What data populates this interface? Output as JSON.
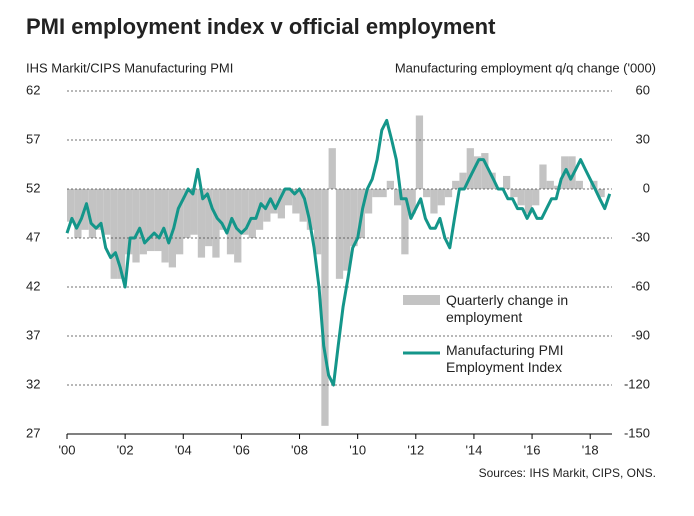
{
  "chart_data": {
    "type": "bar-line",
    "title": "PMI employment index v official employment",
    "y_label": "IHS Markit/CIPS Manufacturing PMI",
    "y2_label": "Manufacturing employment  q/q change ('000)",
    "source": "Sources: IHS Markit, CIPS, ONS.",
    "xlim": [
      2000,
      2018.75
    ],
    "xticks": [
      {
        "value": 2000,
        "label": "'00"
      },
      {
        "value": 2002,
        "label": "'02"
      },
      {
        "value": 2004,
        "label": "'04"
      },
      {
        "value": 2006,
        "label": "'06"
      },
      {
        "value": 2008,
        "label": "'08"
      },
      {
        "value": 2010,
        "label": "'10"
      },
      {
        "value": 2012,
        "label": "'12"
      },
      {
        "value": 2014,
        "label": "'14"
      },
      {
        "value": 2016,
        "label": "'16"
      },
      {
        "value": 2018,
        "label": "'18"
      }
    ],
    "ylim": [
      27,
      62
    ],
    "yticks": [
      27,
      32,
      37,
      42,
      47,
      52,
      57,
      62
    ],
    "y2lim": [
      -150,
      60
    ],
    "y2ticks": [
      -150,
      -120,
      -90,
      -60,
      -30,
      0,
      30,
      60
    ],
    "grid": true,
    "series": [
      {
        "name": "Quarterly change in employment",
        "type": "bar",
        "axis": "y2",
        "color": "#c3c3c3",
        "x": [
          2000,
          2000.25,
          2000.5,
          2000.75,
          2001,
          2001.25,
          2001.5,
          2001.75,
          2002,
          2002.25,
          2002.5,
          2002.75,
          2003,
          2003.25,
          2003.5,
          2003.75,
          2004,
          2004.25,
          2004.5,
          2004.75,
          2005,
          2005.25,
          2005.5,
          2005.75,
          2006,
          2006.25,
          2006.5,
          2006.75,
          2007,
          2007.25,
          2007.5,
          2007.75,
          2008,
          2008.25,
          2008.5,
          2008.75,
          2009,
          2009.25,
          2009.5,
          2009.75,
          2010,
          2010.25,
          2010.5,
          2010.75,
          2011,
          2011.25,
          2011.5,
          2011.75,
          2012,
          2012.25,
          2012.5,
          2012.75,
          2013,
          2013.25,
          2013.5,
          2013.75,
          2014,
          2014.25,
          2014.5,
          2014.75,
          2015,
          2015.25,
          2015.5,
          2015.75,
          2016,
          2016.25,
          2016.5,
          2016.75,
          2017,
          2017.25,
          2017.5,
          2017.75,
          2018,
          2018.25
        ],
        "values": [
          -20,
          -30,
          -25,
          -30,
          -25,
          -28,
          -55,
          -55,
          -40,
          -45,
          -40,
          -38,
          -38,
          -45,
          -48,
          -40,
          -30,
          -28,
          -42,
          -35,
          -42,
          -25,
          -40,
          -45,
          -28,
          -30,
          -25,
          -20,
          -15,
          -18,
          -10,
          -15,
          -20,
          -25,
          -40,
          -145,
          25,
          -55,
          -50,
          -35,
          -30,
          -15,
          -5,
          -5,
          5,
          -10,
          -40,
          -15,
          45,
          -5,
          -15,
          -10,
          -5,
          5,
          10,
          25,
          20,
          22,
          10,
          0,
          8,
          -5,
          -10,
          -15,
          -10,
          15,
          5,
          2,
          20,
          20,
          5,
          0,
          5,
          -5
        ]
      },
      {
        "name": "Manufacturing PMI Employment Index",
        "type": "line",
        "axis": "y",
        "color": "#14968a",
        "x": [
          2000,
          2000.17,
          2000.33,
          2000.5,
          2000.67,
          2000.83,
          2001,
          2001.17,
          2001.33,
          2001.5,
          2001.67,
          2001.83,
          2002,
          2002.17,
          2002.33,
          2002.5,
          2002.67,
          2002.83,
          2003,
          2003.17,
          2003.33,
          2003.5,
          2003.67,
          2003.83,
          2004,
          2004.17,
          2004.33,
          2004.5,
          2004.67,
          2004.83,
          2005,
          2005.17,
          2005.33,
          2005.5,
          2005.67,
          2005.83,
          2006,
          2006.17,
          2006.33,
          2006.5,
          2006.67,
          2006.83,
          2007,
          2007.17,
          2007.33,
          2007.5,
          2007.67,
          2007.83,
          2008,
          2008.17,
          2008.33,
          2008.5,
          2008.67,
          2008.83,
          2009,
          2009.17,
          2009.33,
          2009.5,
          2009.67,
          2009.83,
          2010,
          2010.17,
          2010.33,
          2010.5,
          2010.67,
          2010.83,
          2011,
          2011.17,
          2011.33,
          2011.5,
          2011.67,
          2011.83,
          2012,
          2012.17,
          2012.33,
          2012.5,
          2012.67,
          2012.83,
          2013,
          2013.17,
          2013.33,
          2013.5,
          2013.67,
          2013.83,
          2014,
          2014.17,
          2014.33,
          2014.5,
          2014.67,
          2014.83,
          2015,
          2015.17,
          2015.33,
          2015.5,
          2015.67,
          2015.83,
          2016,
          2016.17,
          2016.33,
          2016.5,
          2016.67,
          2016.83,
          2017,
          2017.17,
          2017.33,
          2017.5,
          2017.67,
          2017.83,
          2018,
          2018.17,
          2018.33,
          2018.5,
          2018.67
        ],
        "values": [
          47.5,
          49,
          48,
          49,
          50.5,
          48.5,
          48,
          48.5,
          46,
          45,
          45.5,
          44,
          42,
          47,
          47,
          48,
          46.5,
          47,
          47.5,
          47,
          48,
          46.5,
          48,
          50,
          51,
          52,
          51.5,
          54,
          51,
          51.5,
          50,
          49,
          48.5,
          47.5,
          49,
          48,
          47.5,
          48,
          49,
          49,
          50.5,
          50,
          51,
          50,
          51,
          52,
          52,
          51.5,
          52,
          51,
          49,
          46,
          42,
          36,
          33,
          32,
          36,
          40,
          43,
          46,
          47,
          50,
          52,
          53,
          55,
          58,
          59,
          57,
          55,
          51,
          51,
          49,
          50,
          51,
          49,
          48,
          48,
          49,
          47,
          46,
          49,
          52,
          52,
          53,
          54,
          55,
          55,
          54,
          53,
          52,
          52,
          51,
          51,
          50,
          50,
          49,
          50,
          49,
          49,
          50,
          51,
          51,
          53,
          54,
          53,
          54,
          55,
          54,
          53,
          52,
          51,
          50,
          51.5
        ]
      }
    ]
  }
}
